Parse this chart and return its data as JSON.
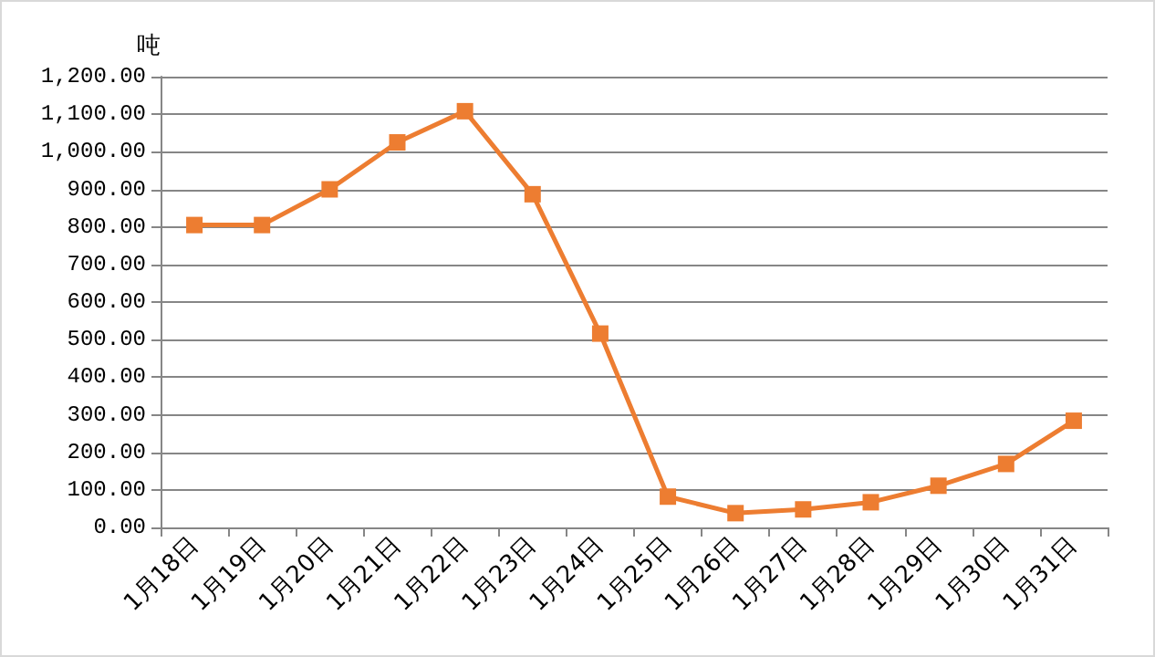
{
  "chart_data": {
    "type": "line",
    "ylabel": "吨",
    "categories": [
      "1月18日",
      "1月19日",
      "1月20日",
      "1月21日",
      "1月22日",
      "1月23日",
      "1月24日",
      "1月25日",
      "1月26日",
      "1月27日",
      "1月28日",
      "1月29日",
      "1月30日",
      "1月31日"
    ],
    "series": [
      {
        "color": "#ed7d31",
        "values": [
          805,
          805,
          900,
          1025,
          1108,
          887,
          516,
          82,
          38,
          48,
          67,
          111,
          169,
          284
        ]
      }
    ],
    "ylim": [
      0,
      1200
    ],
    "yticks": [
      {
        "value": 0,
        "label": "0.00"
      },
      {
        "value": 100,
        "label": "100.00"
      },
      {
        "value": 200,
        "label": "200.00"
      },
      {
        "value": 300,
        "label": "300.00"
      },
      {
        "value": 400,
        "label": "400.00"
      },
      {
        "value": 500,
        "label": "500.00"
      },
      {
        "value": 600,
        "label": "600.00"
      },
      {
        "value": 700,
        "label": "700.00"
      },
      {
        "value": 800,
        "label": "800.00"
      },
      {
        "value": 900,
        "label": "900.00"
      },
      {
        "value": 1000,
        "label": "1,000.00"
      },
      {
        "value": 1100,
        "label": "1,100.00"
      },
      {
        "value": 1200,
        "label": "1,200.00"
      }
    ],
    "grid": "y",
    "marker": "square",
    "line_style": "solid"
  }
}
